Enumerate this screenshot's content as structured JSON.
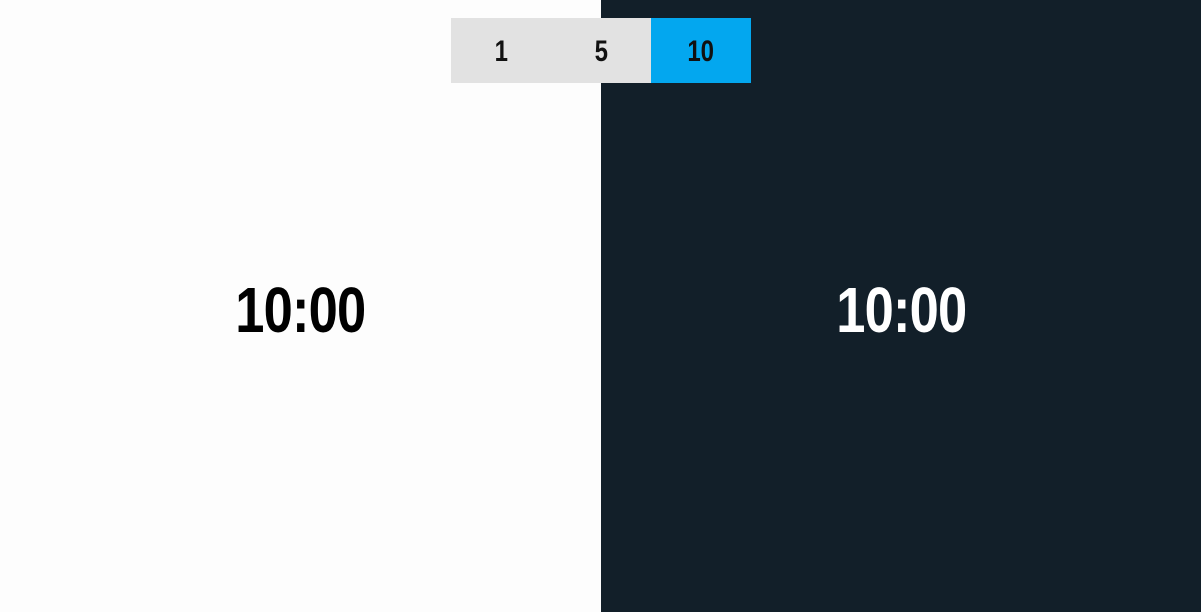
{
  "selector": {
    "options": [
      {
        "label": "1",
        "active": false
      },
      {
        "label": "5",
        "active": false
      },
      {
        "label": "10",
        "active": true
      }
    ]
  },
  "panels": {
    "left": {
      "time": "10:00",
      "theme": "light",
      "background": "#fdfdfd",
      "text_color": "#000000"
    },
    "right": {
      "time": "10:00",
      "theme": "dark",
      "background": "#121f29",
      "text_color": "#ffffff"
    }
  },
  "colors": {
    "accent": "#03a7ef",
    "option_bg": "#e2e2e2"
  }
}
